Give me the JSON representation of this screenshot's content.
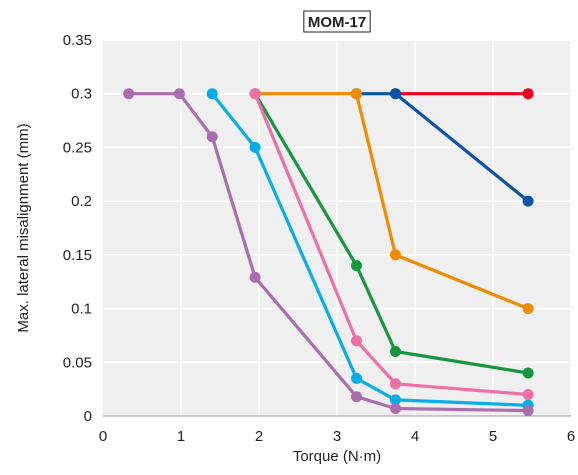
{
  "chart_data": {
    "type": "line",
    "title": "MOM-17",
    "xlabel": "Torque (N·m)",
    "ylabel": "Max. lateral misalignment (mm)",
    "xlim": [
      0,
      6
    ],
    "ylim": [
      0,
      0.35
    ],
    "xticks": [
      "0",
      "1",
      "2",
      "3",
      "4",
      "5",
      "6"
    ],
    "yticks": [
      "0",
      "0.05",
      "0.1",
      "0.15",
      "0.2",
      "0.25",
      "0.3",
      "0.35"
    ],
    "grid": true,
    "legend": "none",
    "series": [
      {
        "color": "#e8001c",
        "x": [
          3.75,
          5.45
        ],
        "y": [
          0.3,
          0.3
        ]
      },
      {
        "color": "#0a54a5",
        "x": [
          3.25,
          3.75,
          5.45
        ],
        "y": [
          0.3,
          0.3,
          0.2
        ]
      },
      {
        "color": "#f08a00",
        "x": [
          1.95,
          3.25,
          3.75,
          5.45
        ],
        "y": [
          0.3,
          0.3,
          0.15,
          0.1
        ]
      },
      {
        "color": "#16963f",
        "x": [
          1.95,
          3.25,
          3.75,
          5.45
        ],
        "y": [
          0.3,
          0.14,
          0.06,
          0.04
        ]
      },
      {
        "color": "#ee6fa6",
        "x": [
          1.95,
          3.25,
          3.75,
          5.45
        ],
        "y": [
          0.3,
          0.07,
          0.03,
          0.02
        ]
      },
      {
        "color": "#06aee8",
        "x": [
          1.4,
          1.95,
          3.25,
          3.75,
          5.45
        ],
        "y": [
          0.3,
          0.25,
          0.035,
          0.015,
          0.01
        ]
      },
      {
        "color": "#a96db0",
        "x": [
          0.33,
          0.98,
          1.4,
          1.95,
          3.25,
          3.75,
          5.45
        ],
        "y": [
          0.3,
          0.3,
          0.26,
          0.129,
          0.018,
          0.007,
          0.005
        ]
      }
    ]
  }
}
